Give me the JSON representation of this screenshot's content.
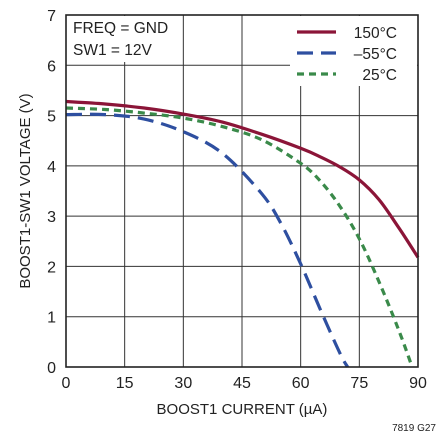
{
  "chart_data": {
    "type": "line",
    "xlabel": "BOOST1 CURRENT (µA)",
    "ylabel": "BOOST1-SW1 VOLTAGE (V)",
    "xlim": [
      0,
      90
    ],
    "ylim": [
      0,
      7
    ],
    "xticks": [
      "0",
      "15",
      "30",
      "45",
      "60",
      "75",
      "90"
    ],
    "yticks": [
      "0",
      "1",
      "2",
      "3",
      "4",
      "5",
      "6",
      "7"
    ],
    "grid": true,
    "legend_position": "top-right",
    "annotations": [
      "FREQ = GND",
      "SW1 = 12V"
    ],
    "figure_code": "7819 G27",
    "series": [
      {
        "name": "150°C",
        "color": "#8b1538",
        "dash": "solid",
        "x": [
          0,
          10,
          20,
          30,
          40,
          50,
          60,
          65,
          70,
          75,
          80,
          85,
          90
        ],
        "y": [
          5.28,
          5.23,
          5.15,
          5.03,
          4.87,
          4.63,
          4.35,
          4.18,
          3.98,
          3.72,
          3.33,
          2.78,
          2.18
        ]
      },
      {
        "name": "–55°C",
        "color": "#2e4fa0",
        "dash": "long",
        "x": [
          0,
          10,
          20,
          30,
          40,
          50,
          55,
          60,
          65,
          70,
          72
        ],
        "y": [
          5.02,
          5.02,
          4.93,
          4.68,
          4.25,
          3.45,
          2.85,
          2.05,
          1.15,
          0.28,
          0
        ]
      },
      {
        "name": "25°C",
        "color": "#3a8a4a",
        "dash": "short",
        "x": [
          0,
          10,
          20,
          30,
          40,
          50,
          60,
          65,
          70,
          75,
          80,
          85,
          88.5
        ],
        "y": [
          5.15,
          5.12,
          5.05,
          4.95,
          4.78,
          4.52,
          4.05,
          3.7,
          3.2,
          2.55,
          1.7,
          0.75,
          0
        ]
      }
    ]
  }
}
